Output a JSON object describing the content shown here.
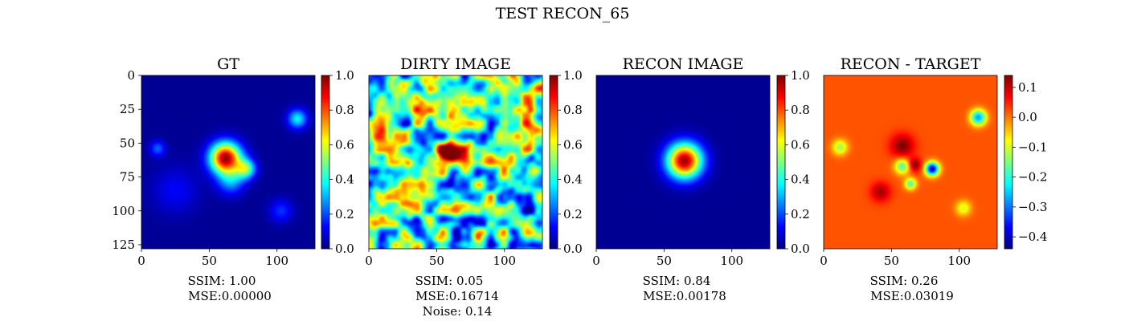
{
  "suptitle": "TEST RECON_65",
  "colors": {
    "colormap": "jet",
    "jet_stops": [
      "#00007f",
      "#0000ff",
      "#007fff",
      "#00ffff",
      "#7fff7f",
      "#ffff00",
      "#ff7f00",
      "#ff0000",
      "#7f0000"
    ]
  },
  "chart_data": [
    {
      "type": "heatmap",
      "title": "GT",
      "image_extent": [
        0,
        128
      ],
      "xticks": [
        "0",
        "50",
        "100"
      ],
      "yticks": [
        "0",
        "25",
        "50",
        "75",
        "100",
        "125"
      ],
      "colorbar": {
        "range": [
          0.0,
          1.0
        ],
        "ticks": [
          "0.0",
          "0.2",
          "0.4",
          "0.6",
          "0.8",
          "1.0"
        ]
      },
      "metrics": [
        "SSIM: 1.00",
        "MSE:0.00000"
      ],
      "background_level": 0.02,
      "blobs": [
        {
          "x": 62,
          "y": 61,
          "sigma": 8,
          "amp": 0.95
        },
        {
          "x": 77,
          "y": 69,
          "sigma": 5,
          "amp": 0.45
        },
        {
          "x": 66,
          "y": 78,
          "sigma": 7,
          "amp": 0.25
        },
        {
          "x": 115,
          "y": 32,
          "sigma": 5,
          "amp": 0.35
        },
        {
          "x": 12,
          "y": 54,
          "sigma": 4,
          "amp": 0.2
        },
        {
          "x": 103,
          "y": 100,
          "sigma": 6,
          "amp": 0.15
        },
        {
          "x": 25,
          "y": 85,
          "sigma": 12,
          "amp": 0.1
        }
      ]
    },
    {
      "type": "heatmap",
      "title": "DIRTY IMAGE",
      "image_extent": [
        0,
        128
      ],
      "xticks": [
        "0",
        "50",
        "100"
      ],
      "colorbar": {
        "range": [
          0.0,
          1.0
        ],
        "ticks": [
          "0.0",
          "0.2",
          "0.4",
          "0.6",
          "0.8",
          "1.0"
        ]
      },
      "metrics": [
        "SSIM: 0.05",
        "MSE:0.16714",
        "Noise: 0.14"
      ],
      "background_level": 0.45,
      "noise_amplitude": 0.35,
      "blobs": [
        {
          "x": 59,
          "y": 57,
          "sigma": 6,
          "amp": 0.5
        },
        {
          "x": 45,
          "y": 88,
          "sigma": 4,
          "amp": 0.45
        },
        {
          "x": 125,
          "y": 39,
          "sigma": 4,
          "amp": 0.45
        },
        {
          "x": 121,
          "y": 71,
          "sigma": 4,
          "amp": 0.45
        }
      ]
    },
    {
      "type": "heatmap",
      "title": "RECON IMAGE",
      "image_extent": [
        0,
        128
      ],
      "xticks": [
        "0",
        "50",
        "100"
      ],
      "colorbar": {
        "range": [
          0.0,
          1.0
        ],
        "ticks": [
          "0.0",
          "0.2",
          "0.4",
          "0.6",
          "0.8",
          "1.0"
        ]
      },
      "metrics": [
        "SSIM: 0.84",
        "MSE:0.00178"
      ],
      "background_level": 0.02,
      "blobs": [
        {
          "x": 65,
          "y": 63,
          "sigma": 9,
          "amp": 0.95
        }
      ]
    },
    {
      "type": "heatmap",
      "title": "RECON - TARGET",
      "image_extent": [
        0,
        128
      ],
      "xticks": [
        "0",
        "50",
        "100"
      ],
      "colorbar": {
        "range": [
          -0.44,
          0.14
        ],
        "ticks": [
          "0.1",
          "0.0",
          "−0.1",
          "−0.2",
          "−0.3",
          "−0.4"
        ],
        "tick_values": [
          0.1,
          0.0,
          -0.1,
          -0.2,
          -0.3,
          -0.4
        ]
      },
      "metrics": [
        "SSIM: 0.26",
        "MSE:0.03019"
      ],
      "background_level": 0.02,
      "blobs": [
        {
          "x": 58,
          "y": 52,
          "sigma": 6,
          "amp": 0.12
        },
        {
          "x": 42,
          "y": 86,
          "sigma": 5,
          "amp": 0.1
        },
        {
          "x": 67,
          "y": 66,
          "sigma": 3.5,
          "amp": 0.12
        },
        {
          "x": 80,
          "y": 69,
          "sigma": 3.5,
          "amp": -0.42
        },
        {
          "x": 58,
          "y": 67,
          "sigma": 4,
          "amp": -0.2
        },
        {
          "x": 64,
          "y": 80,
          "sigma": 3,
          "amp": -0.2
        },
        {
          "x": 114,
          "y": 31,
          "sigma": 4,
          "amp": -0.3
        },
        {
          "x": 12,
          "y": 53,
          "sigma": 4,
          "amp": -0.15
        },
        {
          "x": 103,
          "y": 98,
          "sigma": 4,
          "amp": -0.12
        }
      ]
    }
  ]
}
